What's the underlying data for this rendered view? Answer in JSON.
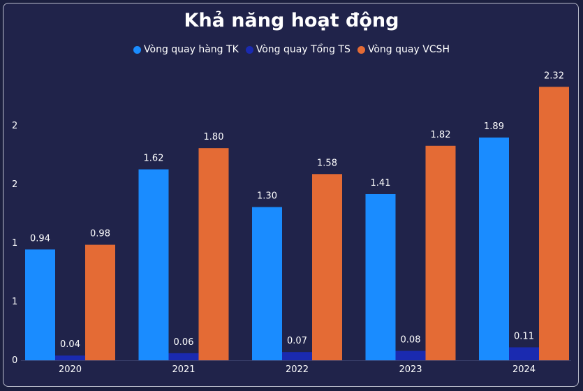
{
  "chart_data": {
    "type": "bar",
    "title": "Khả năng hoạt động",
    "categories": [
      "2020",
      "2021",
      "2022",
      "2023",
      "2024"
    ],
    "series": [
      {
        "name": "Vòng quay hàng TK",
        "color": "#1a8cff",
        "values": [
          0.94,
          1.62,
          1.3,
          1.41,
          1.89
        ],
        "labels": [
          "0.94",
          "1.62",
          "1.30",
          "1.41",
          "1.89"
        ]
      },
      {
        "name": "Vòng quay Tổng TS",
        "color": "#1a2ab0",
        "values": [
          0.04,
          0.06,
          0.07,
          0.08,
          0.11
        ],
        "labels": [
          "0.04",
          "0.06",
          "0.07",
          "0.08",
          "0.11"
        ]
      },
      {
        "name": "Vòng quay VCSH",
        "color": "#e46b35",
        "values": [
          0.98,
          1.8,
          1.58,
          1.82,
          2.32
        ],
        "labels": [
          "0.98",
          "1.80",
          "1.58",
          "1.82",
          "2.32"
        ]
      }
    ],
    "ytick_labels": [
      "0",
      "1",
      "1",
      "2",
      "2"
    ],
    "ylim": [
      0,
      2.5
    ],
    "legend": "top-center",
    "grid": false
  }
}
